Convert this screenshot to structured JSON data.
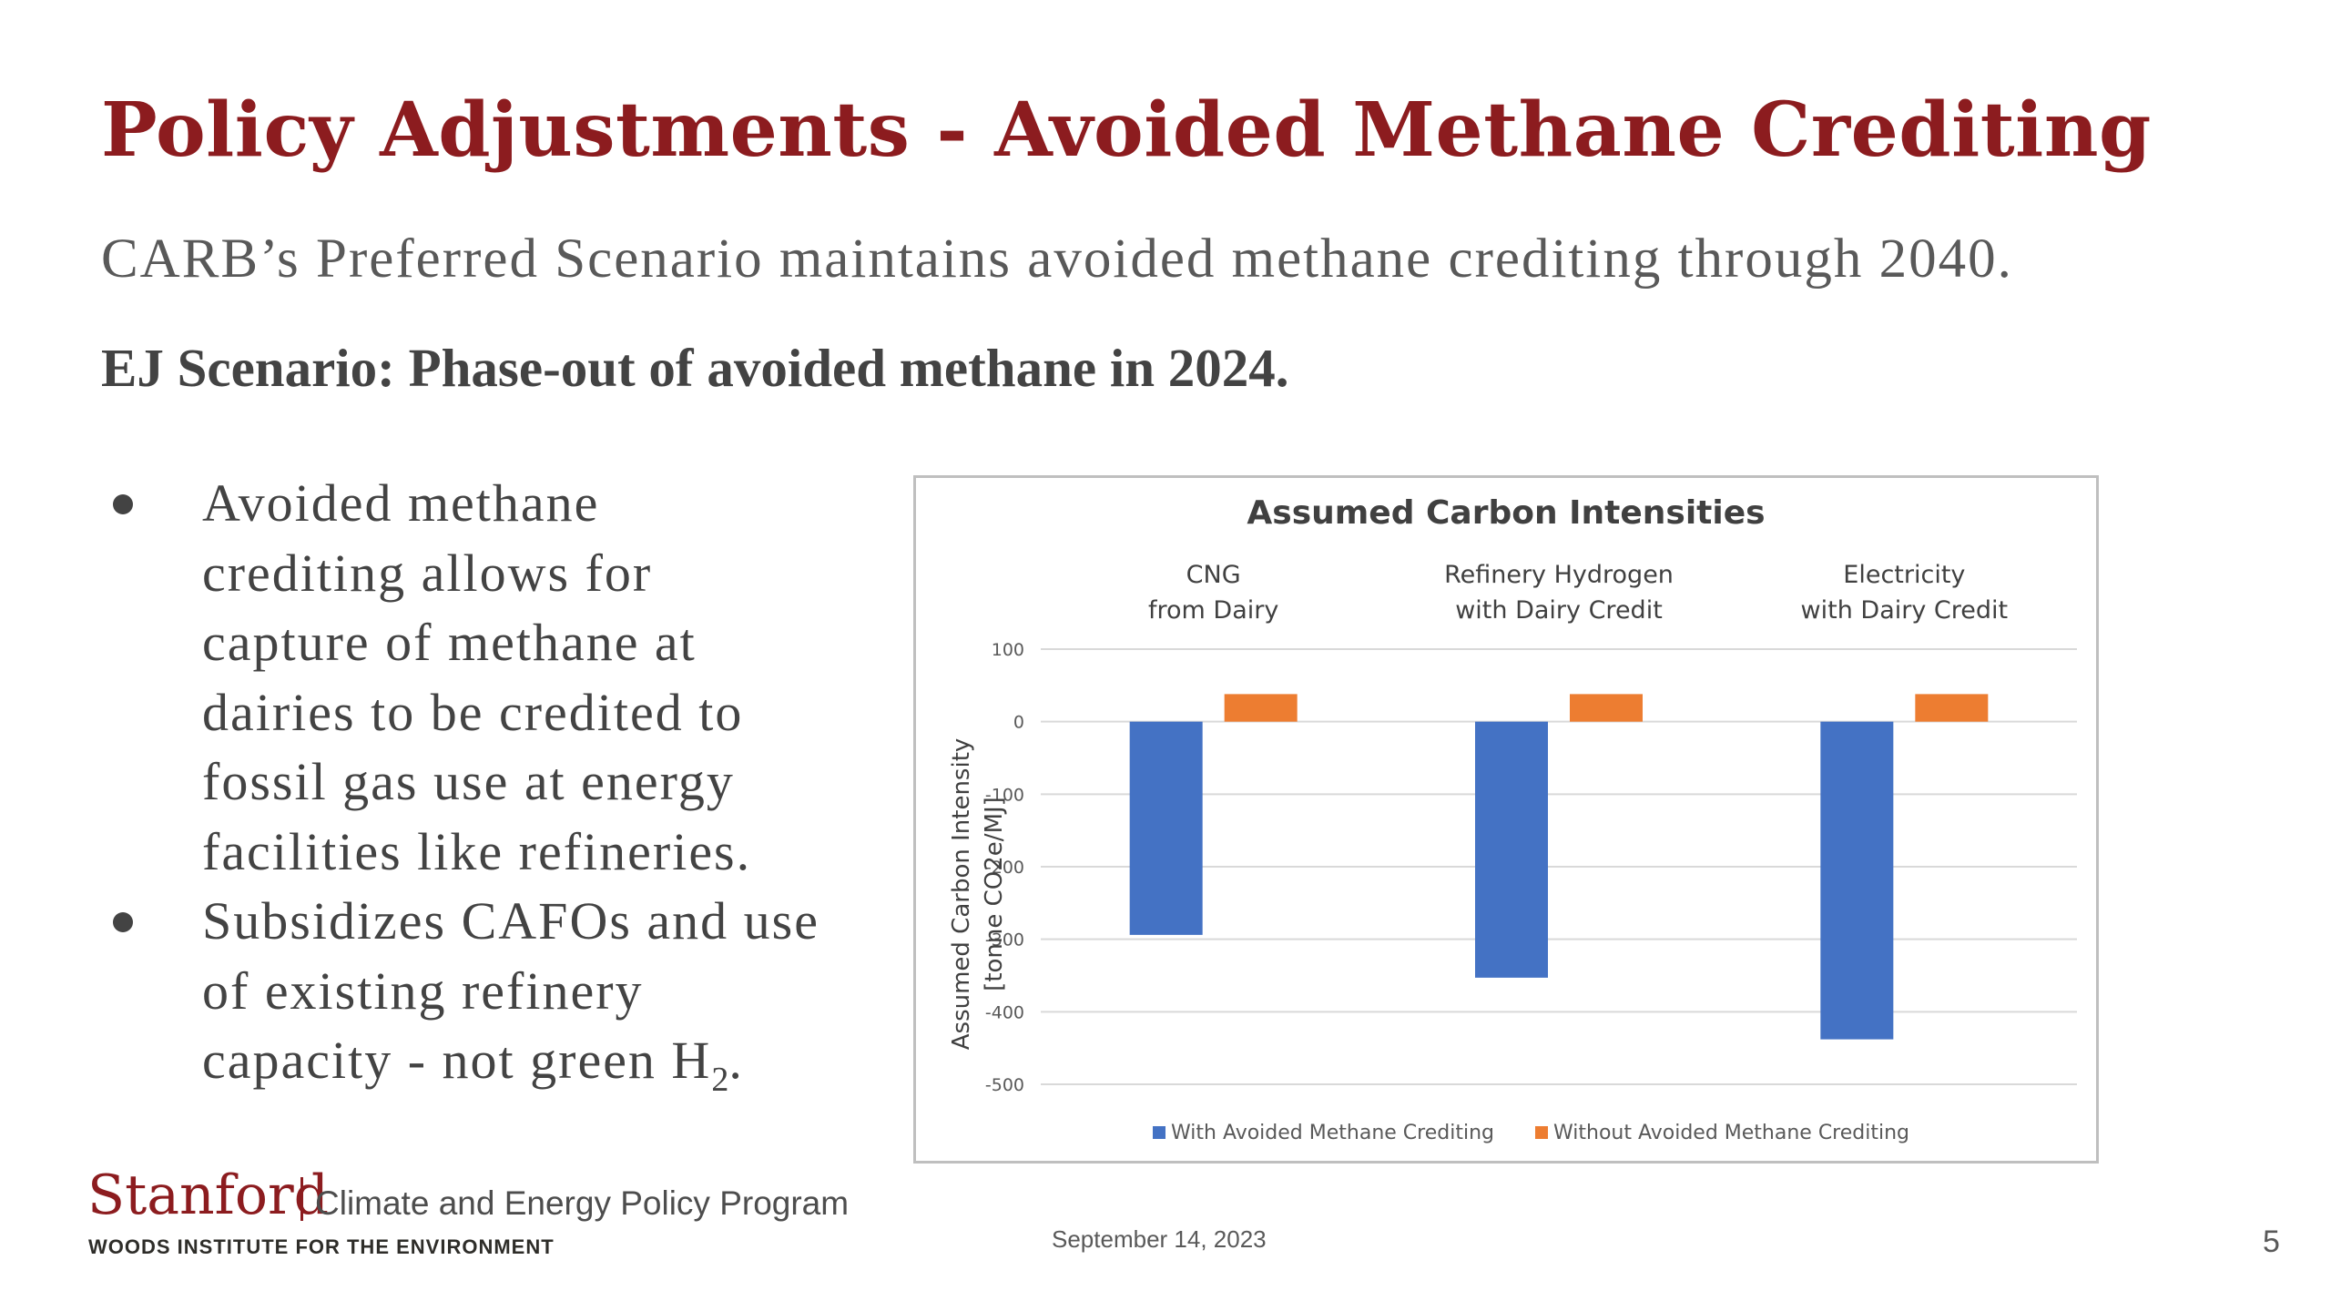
{
  "slide": {
    "title": "Policy Adjustments - Avoided Methane Crediting",
    "subtitle": "CARB’s Preferred Scenario maintains avoided methane crediting through 2040.",
    "ej_heading": "EJ Scenario: Phase-out of avoided methane in 2024.",
    "bullets": [
      {
        "lines": [
          "Avoided methane",
          "crediting allows for",
          "capture of methane at",
          "dairies to be credited to",
          "fossil gas use at energy",
          "facilities like refineries."
        ]
      },
      {
        "lines": [
          "Subsidizes CAFOs and use",
          "of existing refinery",
          "capacity - not green H"
        ],
        "subscript": "2",
        "tail": "."
      }
    ],
    "footer": {
      "logo_word": "Stanford",
      "program": "Climate and Energy Policy Program",
      "institute": "WOODS INSTITUTE FOR THE ENVIRONMENT",
      "date": "September 14, 2023",
      "page_number": "5"
    }
  },
  "chart_data": {
    "type": "bar",
    "title": "Assumed Carbon Intensities",
    "categories": [
      [
        "CNG",
        "from Dairy"
      ],
      [
        "Refinery Hydrogen",
        "with Dairy Credit"
      ],
      [
        "Electricity",
        "with Dairy Credit"
      ]
    ],
    "category_label_position": "top",
    "series": [
      {
        "name": "With Avoided Methane Crediting",
        "color": "#4472c4",
        "values": [
          -294,
          -353,
          -438
        ]
      },
      {
        "name": "Without Avoided Methane Crediting",
        "color": "#ed7d31",
        "values": [
          38,
          38,
          38
        ]
      }
    ],
    "ylabel_lines": [
      "Assumed Carbon Intensity",
      "[tonne CO2e/MJ]"
    ],
    "xlabel": "",
    "ylim": [
      -500,
      100
    ],
    "yticks": [
      100,
      0,
      -100,
      -200,
      -300,
      -400,
      -500
    ],
    "grid": true,
    "legend_position": "bottom"
  }
}
